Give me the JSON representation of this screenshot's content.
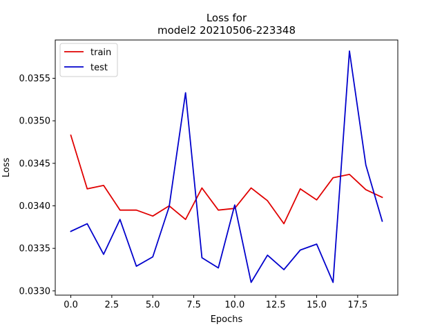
{
  "chart_data": {
    "type": "line",
    "title": [
      "Loss for",
      "model2 20210506-223348"
    ],
    "xlabel": "Epochs",
    "ylabel": "Loss",
    "x": [
      0,
      1,
      2,
      3,
      4,
      5,
      6,
      7,
      8,
      9,
      10,
      11,
      12,
      13,
      14,
      15,
      16,
      17,
      18,
      19
    ],
    "xlim": [
      -0.95,
      19.95
    ],
    "ylim": [
      0.03295,
      0.03595
    ],
    "xticks": [
      0.0,
      2.5,
      5.0,
      7.5,
      10.0,
      12.5,
      15.0,
      17.5
    ],
    "xtick_labels": [
      "0.0",
      "2.5",
      "5.0",
      "7.5",
      "10.0",
      "12.5",
      "15.0",
      "17.5"
    ],
    "yticks": [
      0.033,
      0.0335,
      0.034,
      0.0345,
      0.035,
      0.0355
    ],
    "ytick_labels": [
      "0.0330",
      "0.0335",
      "0.0340",
      "0.0345",
      "0.0350",
      "0.0355"
    ],
    "grid": false,
    "legend_position": "top-left",
    "series": [
      {
        "name": "train",
        "color": "#e00000",
        "values": [
          0.03483,
          0.0342,
          0.03424,
          0.03395,
          0.03395,
          0.03388,
          0.034,
          0.03384,
          0.03421,
          0.03395,
          0.03397,
          0.03421,
          0.03406,
          0.03379,
          0.0342,
          0.03407,
          0.03433,
          0.03437,
          0.03419,
          0.0341
        ]
      },
      {
        "name": "test",
        "color": "#0000cc",
        "values": [
          0.0337,
          0.03379,
          0.03343,
          0.03384,
          0.03329,
          0.0334,
          0.03399,
          0.03533,
          0.03339,
          0.03327,
          0.03401,
          0.0331,
          0.03342,
          0.03325,
          0.03348,
          0.03355,
          0.0331,
          0.03582,
          0.03448,
          0.03382
        ]
      }
    ]
  }
}
